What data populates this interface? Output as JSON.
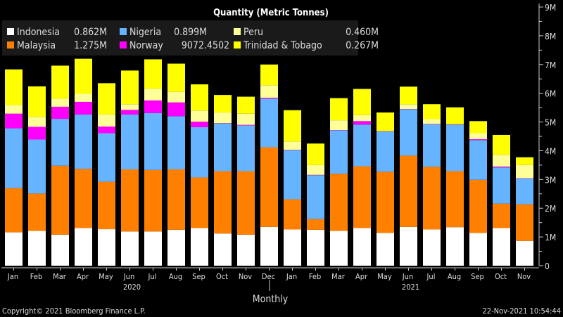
{
  "chart_data": {
    "type": "bar",
    "stacked": true,
    "title": "Quantity (Metric Tonnes)",
    "xlabel": "Monthly",
    "ylabel": "",
    "ylim": [
      0,
      9
    ],
    "y_unit": "M",
    "y_ticks": [
      "0",
      "1M",
      "2M",
      "3M",
      "4M",
      "5M",
      "6M",
      "7M",
      "8M",
      "9M"
    ],
    "y_axis_side": "right",
    "grid": false,
    "legend_position": "top-left",
    "categories": [
      "Jan",
      "Feb",
      "Mar",
      "Apr",
      "May",
      "Jun",
      "Jul",
      "Aug",
      "Sep",
      "Oct",
      "Nov",
      "Dec",
      "Jan",
      "Feb",
      "Mar",
      "Apr",
      "May",
      "Jun",
      "Jul",
      "Aug",
      "Sep",
      "Oct",
      "Nov"
    ],
    "year_labels": [
      {
        "label": "2020",
        "category_index": 5
      },
      {
        "label": "2021",
        "category_index": 17
      }
    ],
    "series": [
      {
        "name": "Indonesia",
        "legend_value": "0.862M",
        "color": "#ffffff",
        "values": [
          1.16,
          1.21,
          1.08,
          1.31,
          1.27,
          1.19,
          1.19,
          1.25,
          1.31,
          1.12,
          1.08,
          1.35,
          1.26,
          1.25,
          1.21,
          1.31,
          1.14,
          1.35,
          1.26,
          1.34,
          1.14,
          1.31,
          0.862
        ]
      },
      {
        "name": "Malaysia",
        "legend_value": "1.275M",
        "color": "#ff8000",
        "values": [
          1.54,
          1.3,
          2.4,
          2.06,
          1.65,
          2.16,
          2.14,
          2.1,
          1.76,
          2.17,
          2.21,
          2.77,
          1.05,
          0.37,
          1.99,
          2.15,
          2.13,
          2.48,
          2.18,
          1.95,
          1.85,
          0.85,
          1.275
        ]
      },
      {
        "name": "Nigeria",
        "legend_value": "0.899M",
        "color": "#66b3ff",
        "values": [
          2.08,
          1.88,
          1.63,
          1.89,
          1.69,
          1.91,
          1.98,
          1.85,
          1.75,
          1.66,
          1.59,
          1.69,
          1.71,
          1.53,
          1.51,
          1.45,
          1.4,
          1.61,
          1.48,
          1.62,
          1.38,
          1.26,
          0.899
        ]
      },
      {
        "name": "Norway",
        "legend_value": "9072.4502",
        "color": "#ff00ff",
        "values": [
          0.51,
          0.44,
          0.42,
          0.44,
          0.23,
          0.16,
          0.44,
          0.48,
          0.19,
          0.01,
          0.02,
          0.03,
          0.01,
          0.01,
          0.01,
          0.12,
          0.01,
          0.01,
          0.01,
          0.01,
          0.03,
          0.03,
          0.009
        ]
      },
      {
        "name": "Peru",
        "legend_value": "0.460M",
        "color": "#ffff99",
        "values": [
          0.3,
          0.35,
          0.28,
          0.28,
          0.42,
          0.2,
          0.41,
          0.37,
          0.39,
          0.37,
          0.39,
          0.44,
          0.29,
          0.34,
          0.34,
          0.21,
          0.0,
          0.17,
          0.17,
          0.0,
          0.21,
          0.41,
          0.46
        ]
      },
      {
        "name": "Trinidad & Tobago",
        "legend_value": "0.267M",
        "color": "#ffff00",
        "values": [
          1.24,
          1.06,
          1.15,
          1.22,
          1.09,
          1.17,
          1.02,
          0.98,
          0.91,
          0.61,
          0.59,
          0.72,
          1.09,
          0.75,
          0.77,
          0.91,
          0.65,
          0.61,
          0.52,
          0.59,
          0.42,
          0.69,
          0.267
        ]
      }
    ]
  },
  "footer": {
    "copyright": "Copyright© 2021 Bloomberg Finance L.P.",
    "timestamp": "22-Nov-2021 10:54:44"
  }
}
